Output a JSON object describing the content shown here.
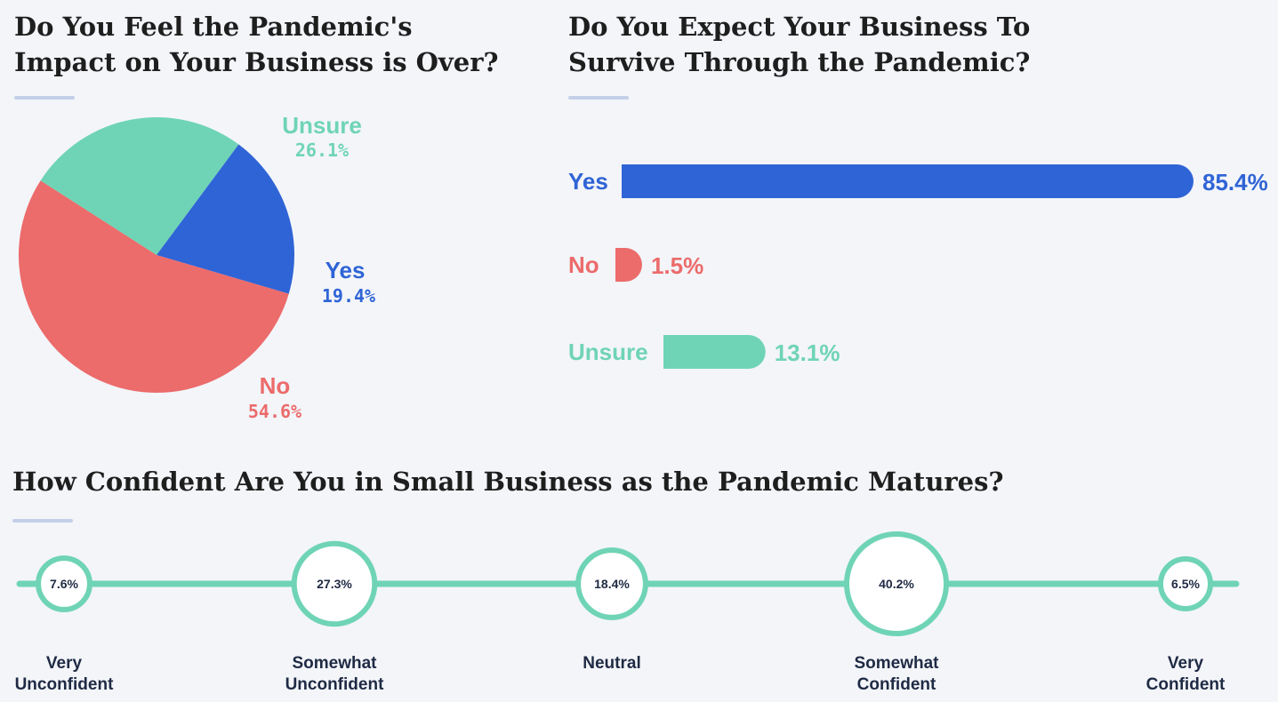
{
  "colors": {
    "yes": "#2f64d6",
    "no": "#ec6b6b",
    "unsure": "#6fd4b5",
    "dark": "#1f2a44",
    "background": "#f3f5f9"
  },
  "pie_title_lines": [
    "Do You Feel the Pandemic's",
    "Impact on Your Business is Over?"
  ],
  "bar_title_lines": [
    "Do You Expect Your Business To",
    "Survive Through the Pandemic?"
  ],
  "scale_title": "How Confident Are You in Small Business as the Pandemic Matures?",
  "chart_data": [
    {
      "type": "pie",
      "title": "Do You Feel the Pandemic's Impact on Your Business is Over?",
      "slices": [
        {
          "label": "Unsure",
          "value": 26.1,
          "display": "26.1%",
          "color": "#6fd4b5"
        },
        {
          "label": "Yes",
          "value": 19.4,
          "display": "19.4%",
          "color": "#2f64d6"
        },
        {
          "label": "No",
          "value": 54.6,
          "display": "54.6%",
          "color": "#ec6b6b"
        }
      ]
    },
    {
      "type": "bar",
      "orientation": "horizontal",
      "title": "Do You Expect Your Business To Survive Through the Pandemic?",
      "categories": [
        "Yes",
        "No",
        "Unsure"
      ],
      "values": [
        85.4,
        1.5,
        13.1
      ],
      "displays": [
        "85.4%",
        "1.5%",
        "13.1%"
      ],
      "colors": [
        "#2f64d6",
        "#ec6b6b",
        "#6fd4b5"
      ]
    },
    {
      "type": "bubble-scale",
      "title": "How Confident Are You in Small Business as the Pandemic Matures?",
      "categories": [
        [
          "Very",
          "Unconfident"
        ],
        [
          "Somewhat",
          "Unconfident"
        ],
        [
          "Neutral"
        ],
        [
          "Somewhat",
          "Confident"
        ],
        [
          "Very",
          "Confident"
        ]
      ],
      "values": [
        7.6,
        27.3,
        18.4,
        40.2,
        6.5
      ],
      "displays": [
        "7.6%",
        "27.3%",
        "18.4%",
        "40.2%",
        "6.5%"
      ],
      "color": "#6fd4b5"
    }
  ]
}
